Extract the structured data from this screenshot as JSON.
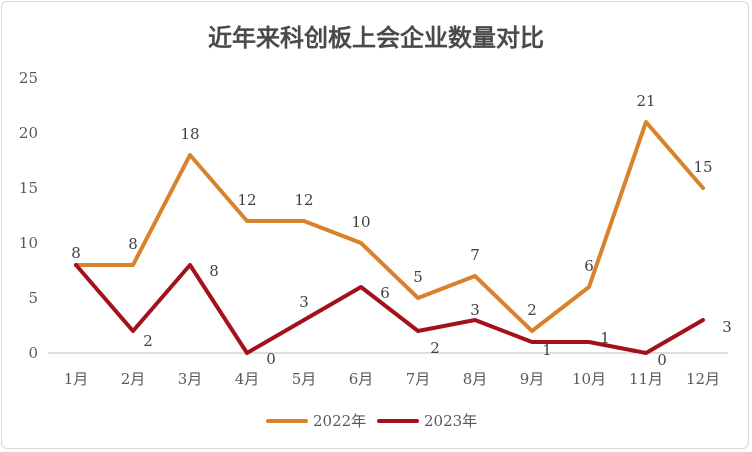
{
  "chart_data": {
    "type": "line",
    "title": "近年来科创板上会企业数量对比",
    "categories": [
      "1月",
      "2月",
      "3月",
      "4月",
      "5月",
      "6月",
      "7月",
      "8月",
      "9月",
      "10月",
      "11月",
      "12月"
    ],
    "series": [
      {
        "name": "2022年",
        "color": "#d9822b",
        "values": [
          8,
          8,
          18,
          12,
          12,
          10,
          5,
          7,
          2,
          6,
          21,
          15
        ]
      },
      {
        "name": "2023年",
        "color": "#a3111b",
        "values": [
          8,
          2,
          8,
          0,
          3,
          6,
          2,
          3,
          1,
          1,
          0,
          3
        ]
      }
    ],
    "yticks": [
      "0",
      "5",
      "10",
      "15",
      "20",
      "25"
    ],
    "ylim": [
      0,
      25
    ],
    "xlabel": "",
    "ylabel": "",
    "grid": false,
    "legend_position": "bottom"
  }
}
